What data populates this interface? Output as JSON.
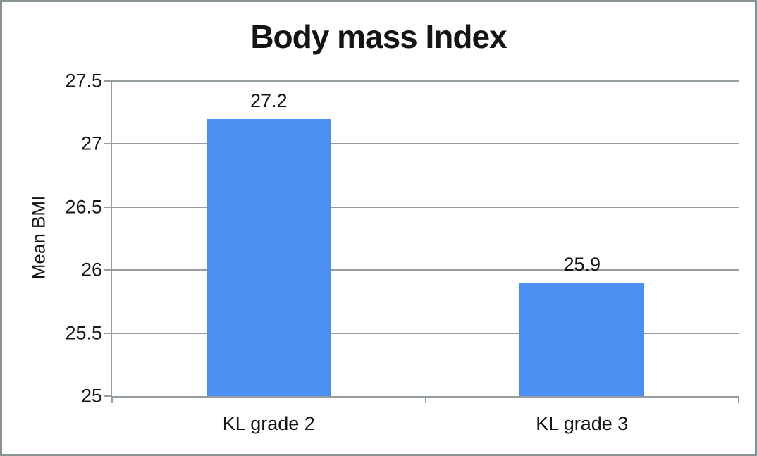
{
  "chart_data": {
    "type": "bar",
    "title": "Body mass Index",
    "ylabel": "Mean BMI",
    "xlabel": "",
    "categories": [
      "KL grade 2",
      "KL grade 3"
    ],
    "values": [
      27.2,
      25.9
    ],
    "data_labels": [
      "27.2",
      "25.9"
    ],
    "ylim": [
      25,
      27.5
    ],
    "yticks": [
      25,
      25.5,
      26,
      26.5,
      27,
      27.5
    ],
    "ytick_labels": [
      "25",
      "25.5",
      "26",
      "26.5",
      "27",
      "27.5"
    ],
    "grid": true,
    "legend": false,
    "colors": {
      "bar": "#4a8ff1",
      "gridline": "#939e9d",
      "frame": "#879192",
      "text": "#141414"
    }
  }
}
